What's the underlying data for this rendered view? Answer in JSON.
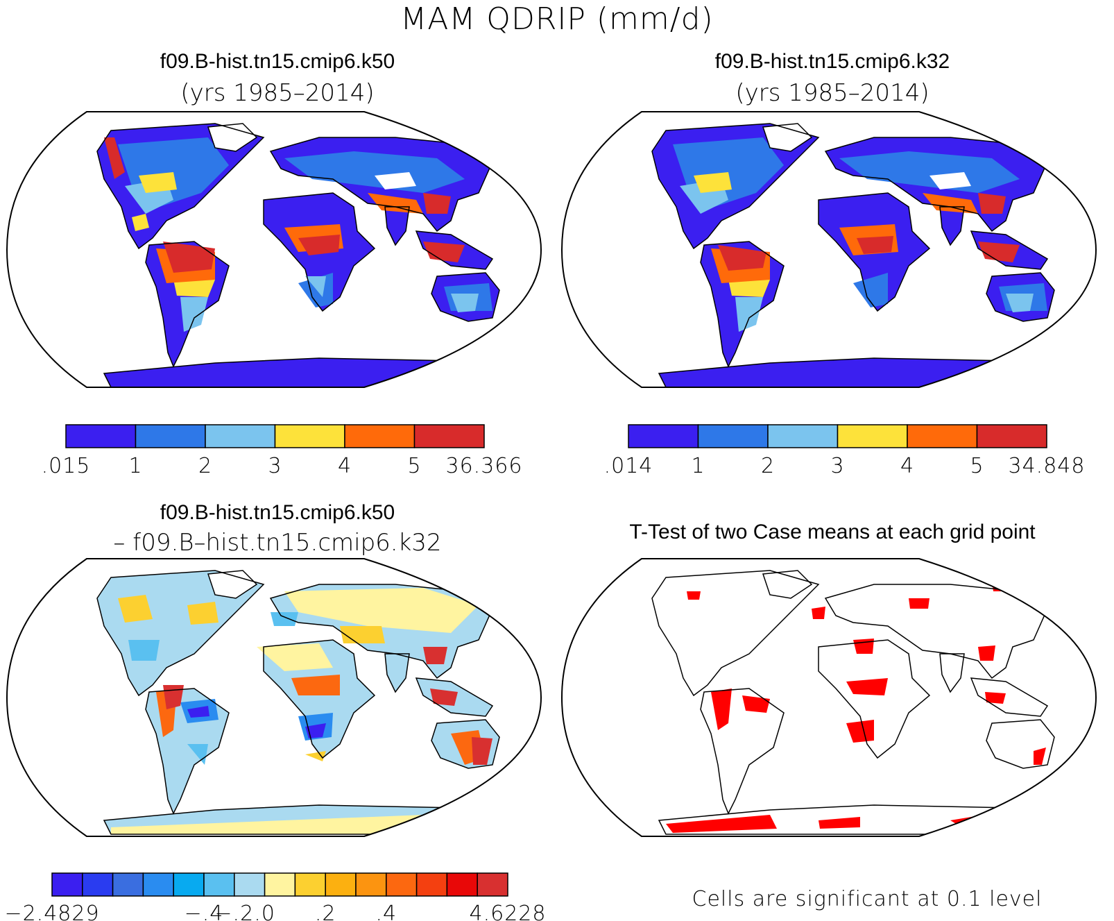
{
  "figure": {
    "title": "MAM QDRIP (mm/d)",
    "footnote": "Cells are significant at 0.1 level"
  },
  "panels": [
    {
      "id": "k50",
      "title": "f09.B-hist.tn15.cmip6.k50",
      "subtitle": "(yrs 1985–2014)"
    },
    {
      "id": "k32",
      "title": "f09.B-hist.tn15.cmip6.k32",
      "subtitle": "(yrs 1985–2014)"
    },
    {
      "id": "diff",
      "title": "f09.B-hist.tn15.cmip6.k50",
      "subtitle": "– f09.B–hist.tn15.cmip6.k32"
    },
    {
      "id": "ttest",
      "title": "T-Test of two Case means at each grid point",
      "subtitle": ""
    }
  ],
  "colorbars": [
    {
      "id": "k50",
      "colors": [
        "#3b1ff0",
        "#2e78e8",
        "#7bc4ee",
        "#fde23a",
        "#ff6a0a",
        "#d82b2b"
      ],
      "labels": [
        ".015",
        "1",
        "2",
        "3",
        "4",
        "5",
        "36.366"
      ]
    },
    {
      "id": "k32",
      "colors": [
        "#3b1ff0",
        "#2e78e8",
        "#7bc4ee",
        "#fde23a",
        "#ff6a0a",
        "#d82b2b"
      ],
      "labels": [
        ".014",
        "1",
        "2",
        "3",
        "4",
        "5",
        "34.848"
      ]
    },
    {
      "id": "diff",
      "colors": [
        "#3b1ff0",
        "#2a3cf0",
        "#3a6ee0",
        "#2a8cf0",
        "#08aaf0",
        "#5ac0f0",
        "#aadaf0",
        "#fff4a0",
        "#fcd030",
        "#fcb010",
        "#fc9410",
        "#fc6810",
        "#f44010",
        "#e80808",
        "#d83030"
      ],
      "labels": [
        "−2.4829",
        "−.4",
        "−.2",
        ".0",
        ".2",
        ".4",
        "4.6228"
      ]
    }
  ],
  "map_colors": {
    "low": "#3b1ff0",
    "mid": "#2e78e8",
    "light": "#7bc4ee",
    "yellow": "#fde23a",
    "orange": "#ff6a0a",
    "red": "#d82b2b",
    "significant": "#ff0000"
  }
}
